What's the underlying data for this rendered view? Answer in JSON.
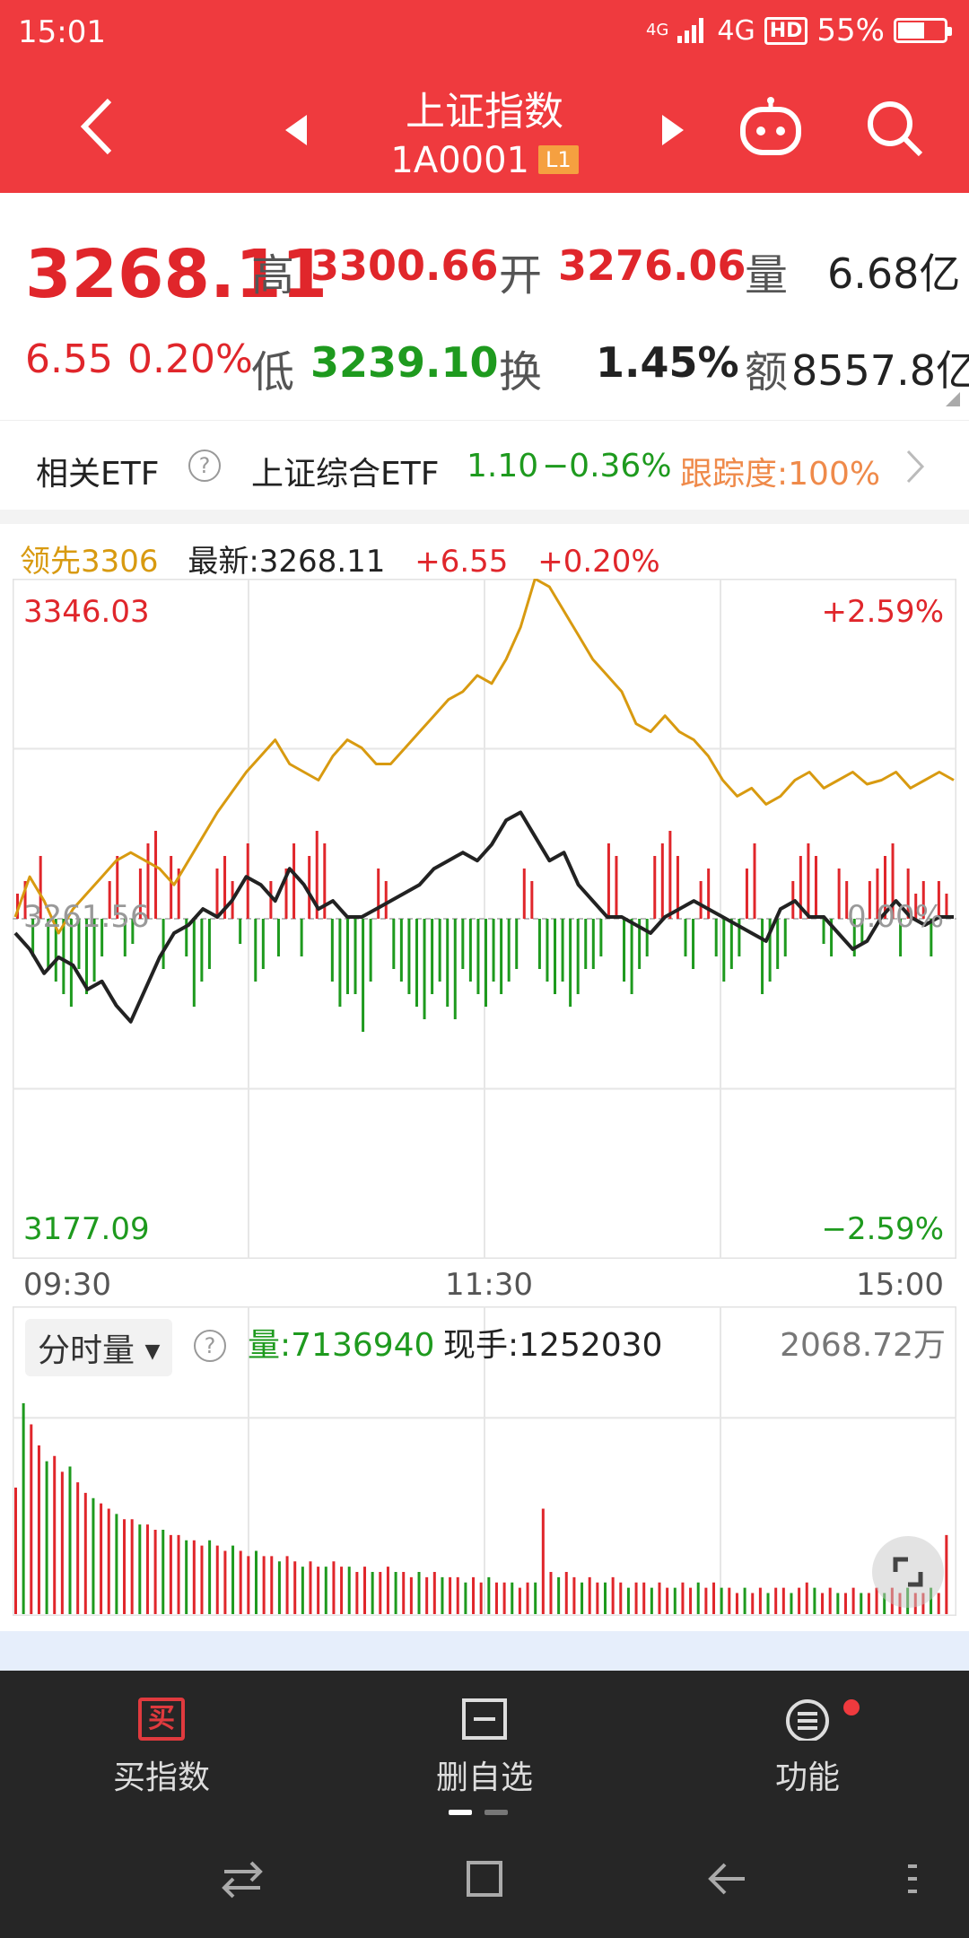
{
  "status": {
    "time": "15:01",
    "signal_top": "4G",
    "network": "4G",
    "hd": "HD",
    "battery_text": "55%",
    "battery_level": 0.55
  },
  "header": {
    "title": "上证指数",
    "code": "1A0001",
    "level": "L1"
  },
  "quote": {
    "price": "3268.11",
    "change": "6.55",
    "change_pct": "0.20%",
    "high_label": "高",
    "high": "3300.66",
    "open_label": "开",
    "open": "3276.06",
    "vol_label": "量",
    "vol": "6.68亿",
    "low_label": "低",
    "low": "3239.10",
    "turnover_label": "换",
    "turnover": "1.45%",
    "amount_label": "额",
    "amount": "8557.8亿"
  },
  "etf": {
    "label": "相关ETF",
    "name": "上证综合ETF",
    "price": "1.10",
    "change": "−0.36%",
    "tracking": "跟踪度:100%"
  },
  "chart_info": {
    "leader": "领先3306",
    "latest": "最新:3268.11",
    "change": "+6.55",
    "change_pct": "+0.20%"
  },
  "chart_data": {
    "type": "line",
    "y_top": "3346.03",
    "y_mid": "3261.56",
    "y_bottom": "3177.09",
    "pct_top": "+2.59%",
    "pct_mid": "0.00%",
    "pct_bottom": "−2.59%",
    "ylim": [
      3177.09,
      3346.03
    ],
    "x_labels": [
      "09:30",
      "11:30",
      "15:00"
    ],
    "series": [
      {
        "values": [
          3262,
          3272,
          3266,
          3258,
          3264,
          3268,
          3272,
          3276,
          3278,
          3276,
          3274,
          3270,
          3276,
          3282,
          3288,
          3293,
          3298,
          3302,
          3306,
          3300,
          3298,
          3296,
          3302,
          3306,
          3304,
          3300,
          3300,
          3304,
          3308,
          3312,
          3316,
          3318,
          3322,
          3320,
          3326,
          3334,
          3346,
          3344,
          3338,
          3332,
          3326,
          3322,
          3318,
          3310,
          3308,
          3312,
          3308,
          3306,
          3302,
          3296,
          3292,
          3294,
          3290,
          3292,
          3296,
          3298,
          3294,
          3296,
          3298,
          3295,
          3296,
          3298,
          3294,
          3296,
          3298,
          3296
        ]
      },
      {
        "values": [
          3258,
          3254,
          3248,
          3252,
          3250,
          3244,
          3246,
          3240,
          3236,
          3244,
          3252,
          3258,
          3260,
          3264,
          3262,
          3266,
          3272,
          3270,
          3266,
          3274,
          3270,
          3264,
          3266,
          3262,
          3262,
          3264,
          3266,
          3268,
          3270,
          3274,
          3276,
          3278,
          3276,
          3280,
          3286,
          3288,
          3282,
          3276,
          3278,
          3270,
          3266,
          3262,
          3262,
          3260,
          3258,
          3262,
          3264,
          3266,
          3264,
          3262,
          3260,
          3258,
          3256,
          3264,
          3266,
          3262,
          3262,
          3258,
          3254,
          3256,
          3262,
          3266,
          3262,
          3260,
          3262,
          3262
        ]
      }
    ],
    "bars": [
      4,
      6,
      -6,
      10,
      -8,
      -10,
      -12,
      -14,
      -8,
      -12,
      -10,
      -6,
      6,
      10,
      -6,
      -4,
      8,
      12,
      14,
      -8,
      10,
      8,
      -6,
      -14,
      -10,
      -8,
      8,
      10,
      6,
      -4,
      12,
      -10,
      -8,
      6,
      -6,
      8,
      12,
      -6,
      10,
      14,
      12,
      -10,
      -14,
      -12,
      -12,
      -18,
      -10,
      8,
      6,
      -8,
      -10,
      -12,
      -14,
      -16,
      -12,
      -10,
      -14,
      -16,
      -8,
      -10,
      -12,
      -14,
      -10,
      -12,
      -10,
      -8,
      8,
      6,
      -8,
      -10,
      -12,
      -10,
      -14,
      -12,
      -8,
      -8,
      -6,
      12,
      10,
      -10,
      -12,
      -8,
      -6,
      10,
      12,
      14,
      10,
      -6,
      -8,
      6,
      8,
      -6,
      -10,
      -8,
      -6,
      8,
      12,
      -12,
      -10,
      -8,
      -6,
      6,
      10,
      12,
      10,
      -4,
      -6,
      8,
      6,
      -6,
      -4,
      6,
      8,
      10,
      12,
      -6,
      8,
      4,
      6,
      -6,
      6,
      4
    ]
  },
  "volume": {
    "selector": "分时量",
    "vol_text": "量:7136940",
    "hand_text": "现手:1252030",
    "max_label": "2068.72万",
    "bars": [
      48,
      80,
      72,
      64,
      58,
      60,
      54,
      56,
      50,
      46,
      44,
      42,
      40,
      38,
      36,
      36,
      34,
      34,
      32,
      32,
      30,
      30,
      28,
      28,
      26,
      28,
      26,
      24,
      26,
      24,
      22,
      24,
      22,
      22,
      20,
      22,
      20,
      18,
      20,
      18,
      18,
      20,
      18,
      18,
      16,
      18,
      16,
      16,
      18,
      16,
      16,
      14,
      16,
      14,
      16,
      14,
      14,
      14,
      12,
      14,
      12,
      14,
      12,
      12,
      12,
      10,
      12,
      12,
      40,
      16,
      14,
      16,
      14,
      12,
      14,
      12,
      12,
      14,
      12,
      10,
      12,
      12,
      10,
      12,
      10,
      10,
      12,
      10,
      12,
      10,
      12,
      10,
      10,
      8,
      10,
      8,
      10,
      8,
      10,
      10,
      8,
      10,
      12,
      10,
      8,
      10,
      8,
      8,
      10,
      8,
      8,
      10,
      8,
      10,
      8,
      10,
      8,
      8,
      10,
      8,
      30
    ]
  },
  "bottom_tabs": {
    "buy": "买指数",
    "buy_icon": "买",
    "remove": "删自选",
    "func": "功能"
  },
  "colors": {
    "header": "#ef3a3e",
    "red": "#e0262b",
    "green": "#1e9a1e",
    "orange": "#d89a10",
    "dark_line": "#222222"
  }
}
